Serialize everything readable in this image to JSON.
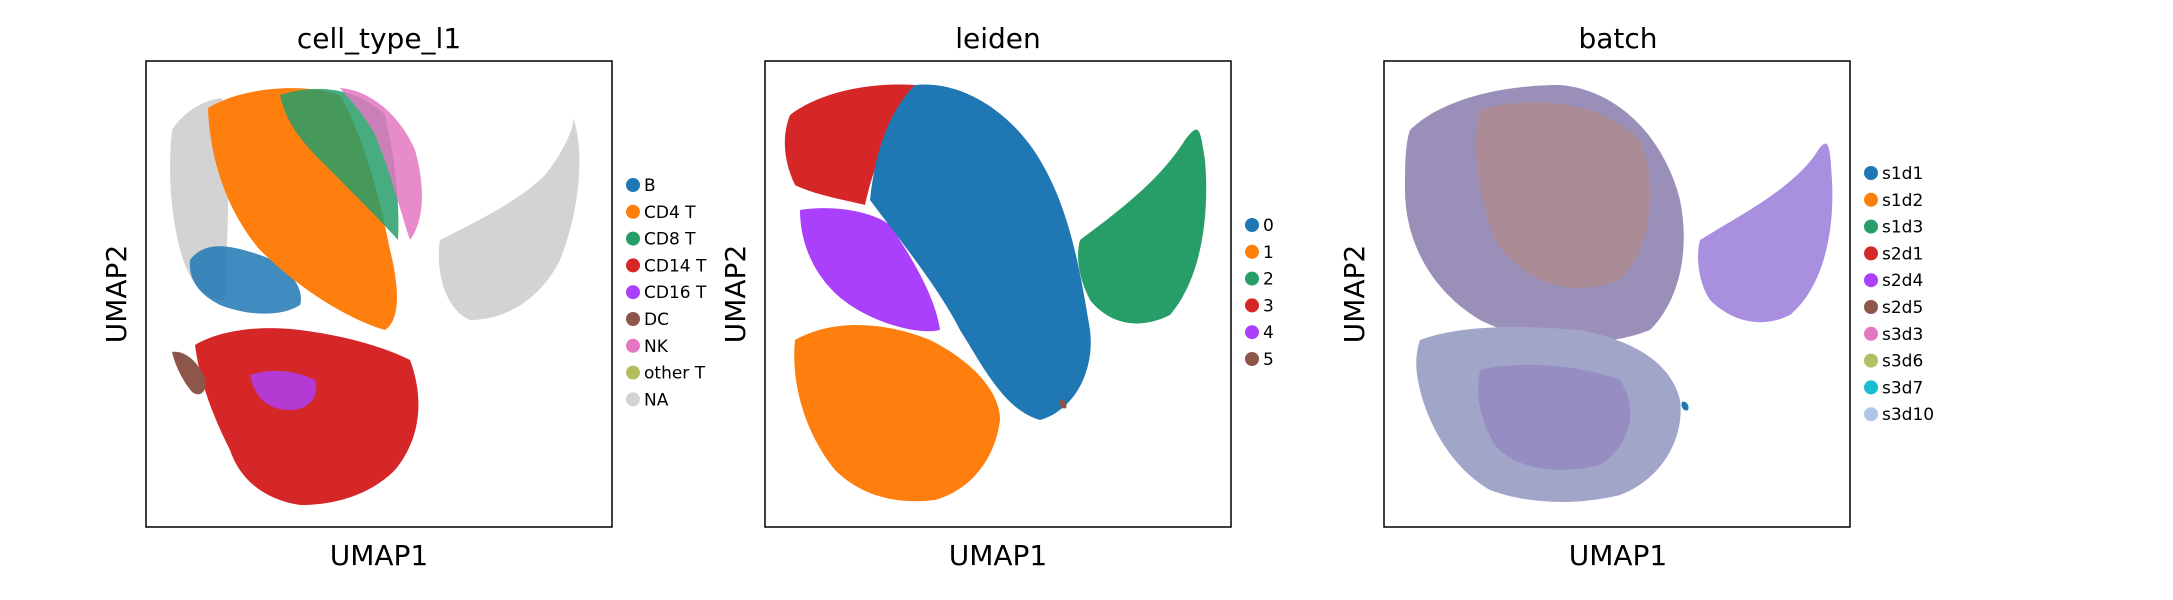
{
  "chart_data": [
    {
      "type": "scatter",
      "title": "cell_type_l1",
      "xlabel": "UMAP1",
      "ylabel": "UMAP2",
      "ticks": "none",
      "legend_position": "right",
      "legend": [
        {
          "label": "B",
          "color": "#1f77b4"
        },
        {
          "label": "CD4 T",
          "color": "#ff7f0e"
        },
        {
          "label": "CD8 T",
          "color": "#279e68"
        },
        {
          "label": "CD14 T",
          "color": "#d62728"
        },
        {
          "label": "CD16 T",
          "color": "#aa40fc"
        },
        {
          "label": "DC",
          "color": "#8c564b"
        },
        {
          "label": "NK",
          "color": "#e377c2"
        },
        {
          "label": "other T",
          "color": "#b5bd61"
        },
        {
          "label": "NA",
          "color": "#d3d3d3"
        }
      ]
    },
    {
      "type": "scatter",
      "title": "leiden",
      "xlabel": "UMAP1",
      "ylabel": "UMAP2",
      "ticks": "none",
      "legend_position": "right",
      "legend": [
        {
          "label": "0",
          "color": "#1f77b4"
        },
        {
          "label": "1",
          "color": "#ff7f0e"
        },
        {
          "label": "2",
          "color": "#279e68"
        },
        {
          "label": "3",
          "color": "#d62728"
        },
        {
          "label": "4",
          "color": "#aa40fc"
        },
        {
          "label": "5",
          "color": "#8c564b"
        }
      ]
    },
    {
      "type": "scatter",
      "title": "batch",
      "xlabel": "UMAP1",
      "ylabel": "UMAP2",
      "ticks": "none",
      "legend_position": "right",
      "legend": [
        {
          "label": "s1d1",
          "color": "#1f77b4"
        },
        {
          "label": "s1d2",
          "color": "#ff7f0e"
        },
        {
          "label": "s1d3",
          "color": "#279e68"
        },
        {
          "label": "s2d1",
          "color": "#d62728"
        },
        {
          "label": "s2d4",
          "color": "#aa40fc"
        },
        {
          "label": "s2d5",
          "color": "#8c564b"
        },
        {
          "label": "s3d3",
          "color": "#e377c2"
        },
        {
          "label": "s3d6",
          "color": "#b5bd61"
        },
        {
          "label": "s3d7",
          "color": "#17becf"
        },
        {
          "label": "s3d10",
          "color": "#aec7e8"
        }
      ]
    }
  ]
}
